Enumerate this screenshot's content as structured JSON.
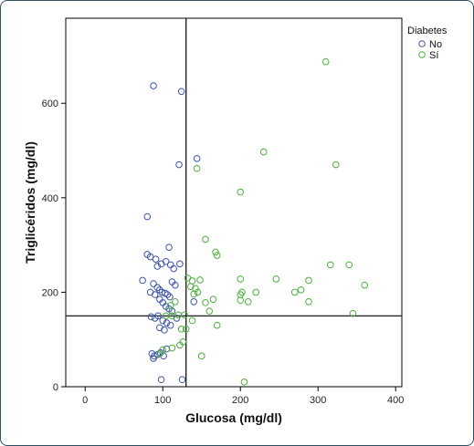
{
  "chart_data": {
    "type": "scatter",
    "title": "",
    "xlabel": "Glucosa (mg/dl)",
    "ylabel": "Triglicéridos (mg/dl)",
    "xlim": [
      -25,
      408
    ],
    "ylim": [
      0,
      780
    ],
    "xticks": [
      0,
      100,
      200,
      300,
      400
    ],
    "yticks": [
      0,
      200,
      400,
      600
    ],
    "grid": false,
    "reference_lines": {
      "x": 130,
      "y": 150
    },
    "legend": {
      "title": "Diabetes",
      "position": "top-right"
    },
    "series": [
      {
        "name": "No",
        "color": "#3d54a8",
        "points": [
          [
            88,
            637
          ],
          [
            124,
            625
          ],
          [
            121,
            470
          ],
          [
            144,
            483
          ],
          [
            80,
            360
          ],
          [
            80,
            280
          ],
          [
            84,
            275
          ],
          [
            91,
            270
          ],
          [
            98,
            260
          ],
          [
            104,
            265
          ],
          [
            110,
            258
          ],
          [
            108,
            295
          ],
          [
            93,
            255
          ],
          [
            114,
            250
          ],
          [
            122,
            260
          ],
          [
            74,
            225
          ],
          [
            88,
            218
          ],
          [
            93,
            210
          ],
          [
            96,
            205
          ],
          [
            99,
            200
          ],
          [
            103,
            198
          ],
          [
            106,
            195
          ],
          [
            109,
            190
          ],
          [
            112,
            222
          ],
          [
            116,
            215
          ],
          [
            84,
            200
          ],
          [
            90,
            195
          ],
          [
            96,
            185
          ],
          [
            100,
            178
          ],
          [
            104,
            170
          ],
          [
            108,
            165
          ],
          [
            112,
            160
          ],
          [
            94,
            150
          ],
          [
            100,
            140
          ],
          [
            105,
            135
          ],
          [
            110,
            130
          ],
          [
            96,
            125
          ],
          [
            102,
            120
          ],
          [
            85,
            148
          ],
          [
            90,
            145
          ],
          [
            140,
            180
          ],
          [
            118,
            145
          ],
          [
            86,
            70
          ],
          [
            89,
            65
          ],
          [
            93,
            68
          ],
          [
            97,
            72
          ],
          [
            101,
            65
          ],
          [
            105,
            80
          ],
          [
            88,
            60
          ],
          [
            98,
            15
          ],
          [
            125,
            15
          ]
        ]
      },
      {
        "name": "Sí",
        "color": "#4caf3a",
        "points": [
          [
            310,
            688
          ],
          [
            230,
            497
          ],
          [
            323,
            470
          ],
          [
            144,
            462
          ],
          [
            200,
            412
          ],
          [
            155,
            312
          ],
          [
            168,
            285
          ],
          [
            170,
            278
          ],
          [
            316,
            258
          ],
          [
            340,
            258
          ],
          [
            246,
            228
          ],
          [
            200,
            228
          ],
          [
            288,
            225
          ],
          [
            360,
            215
          ],
          [
            136,
            212
          ],
          [
            142,
            208
          ],
          [
            145,
            200
          ],
          [
            202,
            200
          ],
          [
            220,
            200
          ],
          [
            270,
            200
          ],
          [
            278,
            205
          ],
          [
            140,
            196
          ],
          [
            200,
            195
          ],
          [
            165,
            185
          ],
          [
            210,
            180
          ],
          [
            200,
            183
          ],
          [
            288,
            180
          ],
          [
            155,
            178
          ],
          [
            160,
            160
          ],
          [
            345,
            155
          ],
          [
            104,
            150
          ],
          [
            112,
            150
          ],
          [
            120,
            152
          ],
          [
            128,
            152
          ],
          [
            138,
            140
          ],
          [
            170,
            130
          ],
          [
            124,
            122
          ],
          [
            130,
            122
          ],
          [
            126,
            95
          ],
          [
            122,
            88
          ],
          [
            112,
            82
          ],
          [
            100,
            78
          ],
          [
            96,
            70
          ],
          [
            150,
            65
          ],
          [
            205,
            10
          ],
          [
            132,
            230
          ],
          [
            138,
            224
          ],
          [
            148,
            226
          ],
          [
            116,
            180
          ],
          [
            110,
            172
          ]
        ]
      }
    ]
  }
}
